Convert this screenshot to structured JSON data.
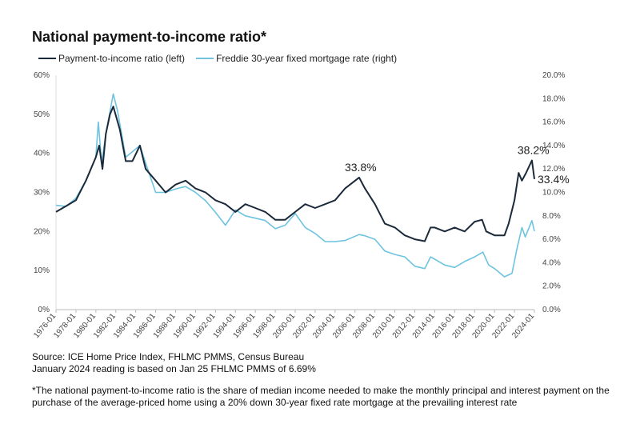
{
  "chart_data": {
    "type": "line",
    "title": "National payment-to-income ratio*",
    "x_ticks": [
      "1976-01",
      "1978-01",
      "1980-01",
      "1982-01",
      "1984-01",
      "1986-01",
      "1988-01",
      "1990-01",
      "1992-01",
      "1994-01",
      "1996-01",
      "1998-01",
      "2000-01",
      "2002-01",
      "2004-01",
      "2006-01",
      "2008-01",
      "2010-01",
      "2012-01",
      "2014-01",
      "2016-01",
      "2018-01",
      "2020-01",
      "2022-01",
      "2024-01"
    ],
    "y_left": {
      "ticks": [
        "0%",
        "10%",
        "20%",
        "30%",
        "40%",
        "50%",
        "60%"
      ],
      "range": [
        0,
        60
      ]
    },
    "y_right": {
      "ticks": [
        "0.0%",
        "2.0%",
        "4.0%",
        "6.0%",
        "8.0%",
        "10.0%",
        "12.0%",
        "14.0%",
        "16.0%",
        "18.0%",
        "20.0%"
      ],
      "range": [
        0,
        20
      ]
    },
    "grid": false,
    "legend_position": "top-left",
    "series": [
      {
        "name": "Payment-to-income ratio (left)",
        "axis": "left",
        "color": "#1b2a3a",
        "x": [
          "1976-01",
          "1977-01",
          "1978-01",
          "1979-01",
          "1980-01",
          "1980-05",
          "1980-09",
          "1981-01",
          "1981-06",
          "1981-10",
          "1982-06",
          "1983-01",
          "1983-09",
          "1984-06",
          "1985-01",
          "1986-01",
          "1987-01",
          "1988-01",
          "1989-01",
          "1990-01",
          "1991-01",
          "1992-01",
          "1993-01",
          "1994-01",
          "1995-01",
          "1996-01",
          "1997-01",
          "1998-01",
          "1999-01",
          "2000-01",
          "2001-01",
          "2002-01",
          "2003-01",
          "2004-01",
          "2005-01",
          "2006-06",
          "2007-01",
          "2008-01",
          "2009-01",
          "2010-01",
          "2011-01",
          "2012-01",
          "2013-01",
          "2013-08",
          "2014-01",
          "2015-01",
          "2016-01",
          "2017-01",
          "2018-01",
          "2018-10",
          "2019-03",
          "2020-01",
          "2021-01",
          "2021-06",
          "2022-01",
          "2022-06",
          "2022-10",
          "2023-03",
          "2023-10",
          "2024-01"
        ],
        "y": [
          25,
          26.5,
          28,
          33,
          39,
          42,
          36,
          45,
          50,
          52,
          46,
          38,
          38,
          42,
          36,
          33,
          30,
          32,
          33,
          31,
          30,
          28,
          27,
          25,
          27,
          26,
          25,
          23,
          23,
          25,
          27,
          26,
          27,
          28,
          31,
          33.8,
          31,
          27,
          22,
          21,
          19,
          18,
          17.5,
          21,
          21,
          20,
          21,
          20,
          22.5,
          23,
          20,
          19,
          19,
          22,
          28,
          35,
          33,
          35,
          38.2,
          33.4
        ]
      },
      {
        "name": "Freddie 30-year fixed mortgage rate (right)",
        "axis": "right",
        "color": "#6ec3e0",
        "x": [
          "1976-01",
          "1977-01",
          "1978-01",
          "1979-01",
          "1980-01",
          "1980-04",
          "1980-08",
          "1981-01",
          "1981-10",
          "1982-03",
          "1983-01",
          "1984-06",
          "1985-01",
          "1986-01",
          "1987-01",
          "1988-01",
          "1989-01",
          "1990-01",
          "1991-01",
          "1992-01",
          "1993-01",
          "1994-01",
          "1995-01",
          "1996-01",
          "1997-01",
          "1998-01",
          "1999-01",
          "2000-01",
          "2001-01",
          "2002-01",
          "2003-01",
          "2004-01",
          "2005-01",
          "2006-06",
          "2007-01",
          "2008-01",
          "2009-01",
          "2010-01",
          "2011-01",
          "2012-01",
          "2013-01",
          "2013-08",
          "2014-01",
          "2015-01",
          "2016-01",
          "2017-01",
          "2018-01",
          "2018-11",
          "2019-06",
          "2020-01",
          "2021-01",
          "2021-10",
          "2022-04",
          "2022-10",
          "2023-02",
          "2023-10",
          "2024-01"
        ],
        "y": [
          8.9,
          8.8,
          9.5,
          11,
          13,
          16,
          12.5,
          15,
          18.4,
          17,
          13,
          14,
          12.5,
          10,
          10,
          10.3,
          10.5,
          10,
          9.3,
          8.3,
          7.2,
          8.5,
          8,
          7.8,
          7.6,
          6.9,
          7.2,
          8.2,
          7,
          6.5,
          5.8,
          5.8,
          5.9,
          6.4,
          6.3,
          6,
          5,
          4.7,
          4.5,
          3.7,
          3.5,
          4.5,
          4.3,
          3.8,
          3.6,
          4.1,
          4.5,
          4.9,
          3.8,
          3.5,
          2.8,
          3.1,
          5.2,
          7,
          6.2,
          7.6,
          6.69
        ]
      }
    ],
    "annotations": [
      {
        "text": "33.8%",
        "x": "2006-06",
        "y": 33.8
      },
      {
        "text": "38.2%",
        "x": "2023-10",
        "y": 38.2
      },
      {
        "text": "33.4%",
        "x": "2024-01",
        "y": 33.4
      }
    ]
  },
  "source": {
    "line1": "Source: ICE Home Price Index, FHLMC PMMS, Census Bureau",
    "line2": "January 2024 reading is based on Jan 25 FHLMC PMMS of 6.69%"
  },
  "footnote": "*The national payment-to-income ratio is the share of median income needed to make the monthly principal and interest payment on the purchase of the average-priced home using a 20% down 30-year fixed rate mortgage at the prevailing interest rate"
}
